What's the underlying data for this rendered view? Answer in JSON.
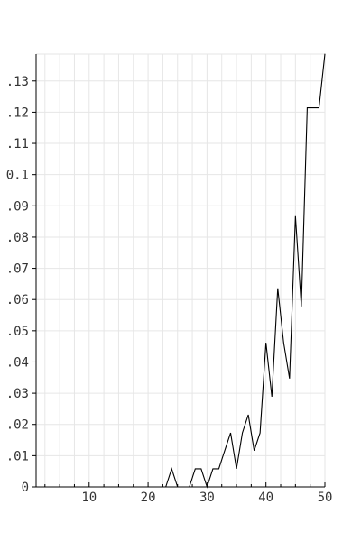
{
  "chart_data": {
    "type": "line",
    "title": "",
    "xlabel": "",
    "ylabel": "",
    "xlim": [
      1,
      50
    ],
    "ylim": [
      0,
      0.1386
    ],
    "grid": true,
    "legend": "none",
    "x_ticks": [
      10,
      20,
      30,
      40,
      50
    ],
    "x_tick_labels": [
      "10",
      "20",
      "30",
      "40",
      "50"
    ],
    "y_ticks": [
      0,
      0.01,
      0.02,
      0.03,
      0.04,
      0.05,
      0.06,
      0.07,
      0.08,
      0.09,
      0.1,
      0.11,
      0.12,
      0.13
    ],
    "y_tick_labels": [
      "0",
      ".01",
      ".02",
      ".03",
      ".04",
      ".05",
      ".06",
      ".07",
      ".08",
      ".09",
      "0.1",
      ".11",
      ".12",
      ".13"
    ],
    "colors": {
      "line": "#000000",
      "grid": "#e6e6e6",
      "text": "#333333"
    },
    "series": [
      {
        "x": [
          1,
          2,
          3,
          4,
          5,
          6,
          7,
          8,
          9,
          10,
          11,
          12,
          13,
          14,
          15,
          16,
          17,
          18,
          19,
          20,
          21,
          22,
          23,
          24,
          25,
          26,
          27,
          28,
          29,
          30,
          31,
          32,
          33,
          34,
          35,
          36,
          37,
          38,
          39,
          40,
          41,
          42,
          43,
          44,
          45,
          46,
          47,
          48,
          49,
          50
        ],
        "values": [
          0,
          0,
          0,
          0,
          0,
          0,
          0,
          0,
          0,
          0,
          0,
          0,
          0,
          0,
          0,
          0,
          0,
          0,
          0,
          0,
          0,
          0,
          0,
          0.0058,
          0,
          0,
          0,
          0.0058,
          0.0058,
          0,
          0.0058,
          0.0058,
          0.0116,
          0.0173,
          0.0058,
          0.0173,
          0.0231,
          0.0116,
          0.0173,
          0.0462,
          0.0289,
          0.0636,
          0.0462,
          0.0347,
          0.0867,
          0.0578,
          0.1214,
          0.1214,
          0.1214,
          0.1387
        ]
      }
    ]
  }
}
